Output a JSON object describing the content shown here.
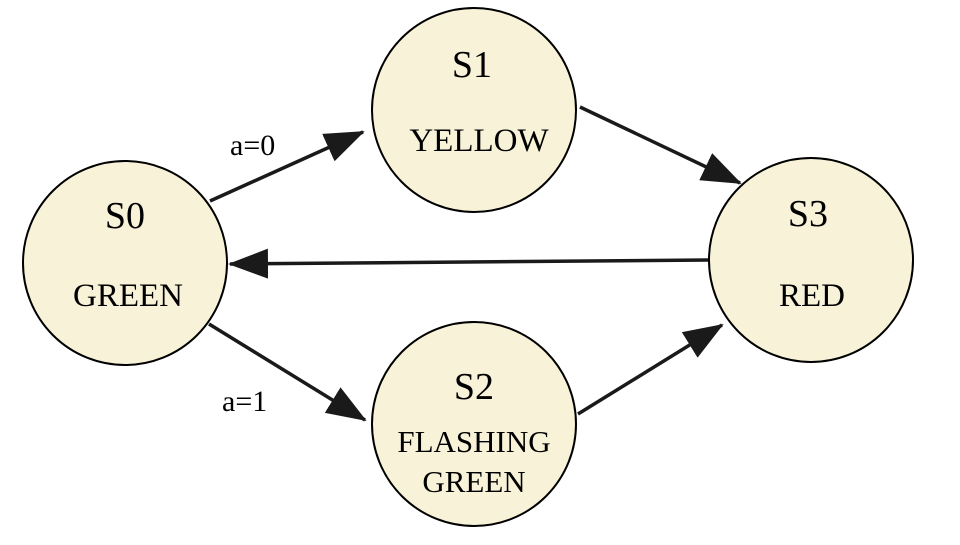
{
  "colors": {
    "state_fill": "#f8f3d8",
    "edge": "#1a1a1a"
  },
  "states": {
    "s0": {
      "name": "S0",
      "output": "GREEN"
    },
    "s1": {
      "name": "S1",
      "output": "YELLOW"
    },
    "s2": {
      "name": "S2",
      "output_line1": "FLASHING",
      "output_line2": "GREEN"
    },
    "s3": {
      "name": "S3",
      "output": "RED"
    }
  },
  "transitions": [
    {
      "from": "S0",
      "to": "S1",
      "label": "a=0"
    },
    {
      "from": "S0",
      "to": "S2",
      "label": "a=1"
    },
    {
      "from": "S1",
      "to": "S3",
      "label": ""
    },
    {
      "from": "S2",
      "to": "S3",
      "label": ""
    },
    {
      "from": "S3",
      "to": "S0",
      "label": ""
    }
  ],
  "labels": {
    "s0_s1": "a=0",
    "s0_s2": "a=1"
  }
}
